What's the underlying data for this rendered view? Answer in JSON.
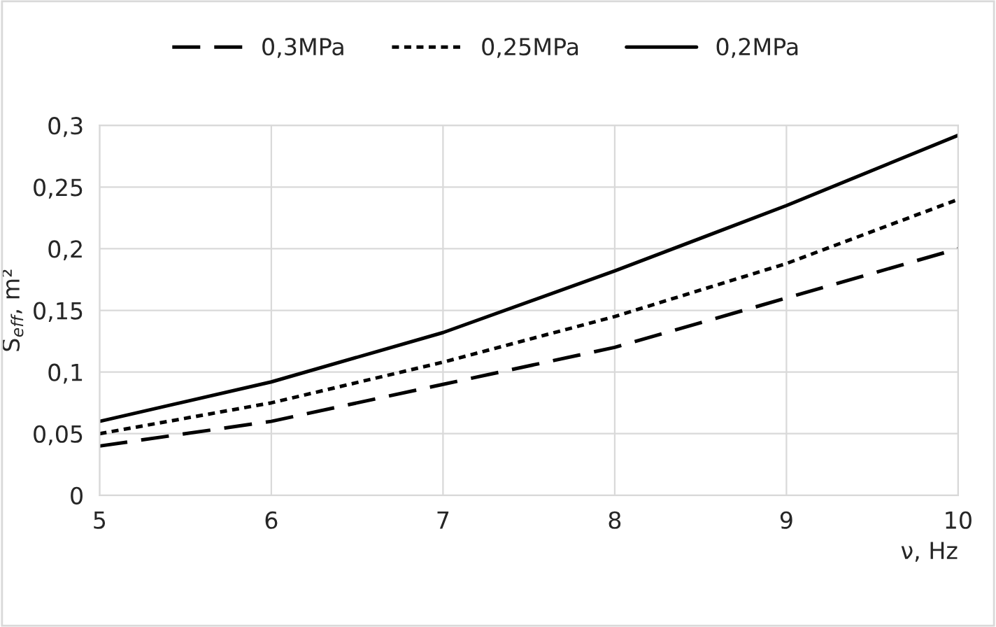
{
  "chart_data": {
    "type": "line",
    "xlabel": "ν, Hz",
    "ylabel": "S$_{eff}$, m²",
    "x": [
      5,
      6,
      7,
      8,
      9,
      10
    ],
    "series": [
      {
        "name": "0,3MPa",
        "color": "#000000",
        "line_style": "dashed",
        "values": [
          0.04,
          0.06,
          0.09,
          0.12,
          0.16,
          0.2
        ]
      },
      {
        "name": "0,25MPa",
        "color": "#000000",
        "line_style": "dotted",
        "values": [
          0.05,
          0.075,
          0.108,
          0.145,
          0.188,
          0.24
        ]
      },
      {
        "name": "0,2MPa",
        "color": "#000000",
        "line_style": "solid",
        "values": [
          0.06,
          0.092,
          0.132,
          0.182,
          0.235,
          0.292
        ]
      }
    ],
    "xlim": [
      5,
      10
    ],
    "xticks": [
      5,
      6,
      7,
      8,
      9,
      10
    ],
    "ylim": [
      0,
      0.3
    ],
    "yticks": [
      0,
      {
        "value": 0.05,
        "label": "0,05"
      },
      {
        "value": 0.1,
        "label": "0,1"
      },
      {
        "value": 0.15,
        "label": "0,15"
      },
      {
        "value": 0.2,
        "label": "0,2"
      },
      {
        "value": 0.25,
        "label": "0,25"
      },
      {
        "value": 0.3,
        "label": "0,3"
      }
    ],
    "grid": true,
    "legend": "top",
    "marker": "none"
  }
}
